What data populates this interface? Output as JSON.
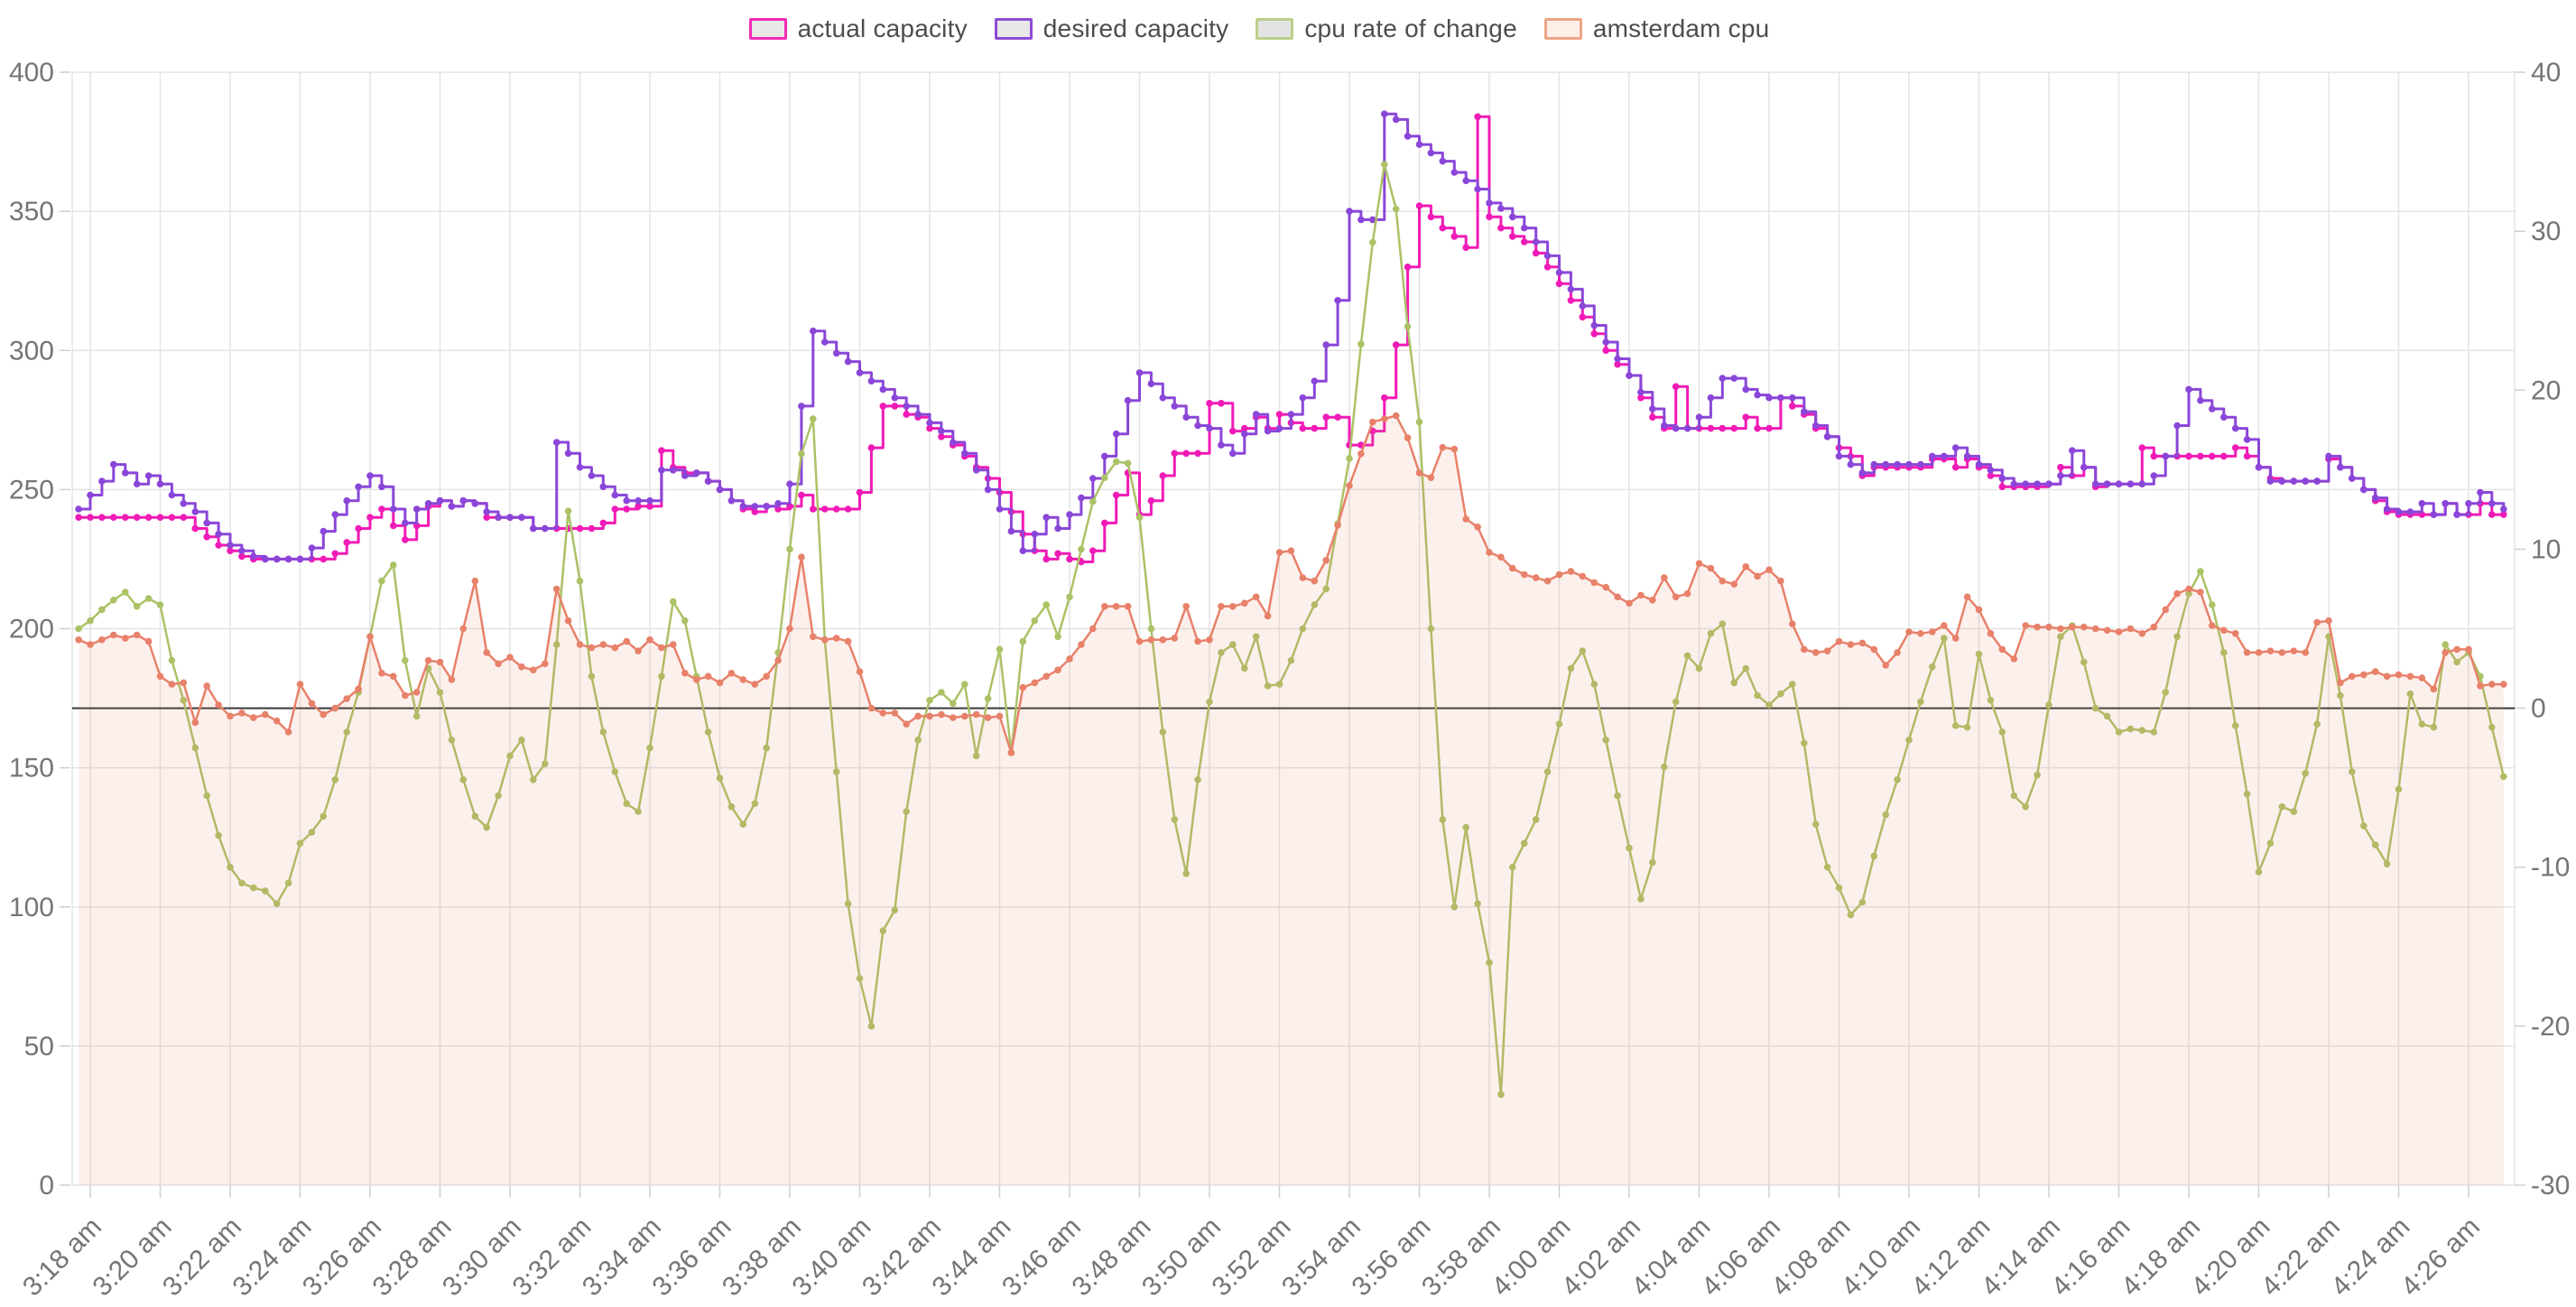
{
  "chart_data": {
    "type": "line",
    "title": "",
    "x_axis": {
      "start_time": "3:17:40 am",
      "step_seconds": 20,
      "point_count": 209,
      "tick_interval_minutes": 2,
      "tick_labels": [
        "3:18 am",
        "3:20 am",
        "3:22 am",
        "3:24 am",
        "3:26 am",
        "3:28 am",
        "3:30 am",
        "3:32 am",
        "3:34 am",
        "3:36 am",
        "3:38 am",
        "3:40 am",
        "3:42 am",
        "3:44 am",
        "3:46 am",
        "3:48 am",
        "3:50 am",
        "3:52 am",
        "3:54 am",
        "3:56 am",
        "3:58 am",
        "4:00 am",
        "4:02 am",
        "4:04 am",
        "4:06 am",
        "4:08 am",
        "4:10 am",
        "4:12 am",
        "4:14 am",
        "4:16 am",
        "4:18 am",
        "4:20 am",
        "4:22 am",
        "4:24 am",
        "4:26 am"
      ]
    },
    "y_axis_left": {
      "min": 0,
      "max": 400,
      "tick_step": 50,
      "ticks": [
        0,
        50,
        100,
        150,
        200,
        250,
        300,
        350,
        400
      ]
    },
    "y_axis_right": {
      "min": -30,
      "max": 40,
      "tick_step": 10,
      "ticks": [
        -30,
        -20,
        -10,
        0,
        10,
        20,
        30,
        40
      ]
    },
    "zero_line": {
      "axis": "right",
      "value": 0,
      "color": "#373737"
    },
    "grid_color": "#e4e4e4",
    "tick_text_color": "#757575",
    "series": [
      {
        "name": "actual capacity",
        "axis": "left",
        "shape": "step",
        "color": "#f01bb6",
        "values": [
          240,
          240,
          240,
          240,
          240,
          240,
          240,
          240,
          240,
          240,
          236,
          233,
          230,
          228,
          226,
          225,
          225,
          225,
          225,
          225,
          225,
          225,
          227,
          231,
          236,
          240,
          243,
          237,
          232,
          237,
          244,
          246,
          244,
          246,
          245,
          240,
          240,
          240,
          240,
          236,
          236,
          236,
          236,
          236,
          236,
          238,
          243,
          243,
          244,
          244,
          264,
          258,
          256,
          256,
          253,
          250,
          246,
          243,
          242,
          244,
          243,
          244,
          248,
          243,
          243,
          243,
          243,
          249,
          265,
          280,
          280,
          277,
          276,
          272,
          269,
          266,
          262,
          258,
          254,
          249,
          242,
          234,
          228,
          225,
          227,
          225,
          224,
          228,
          238,
          248,
          256,
          241,
          246,
          255,
          263,
          263,
          263,
          281,
          281,
          271,
          272,
          276,
          272,
          277,
          274,
          272,
          272,
          276,
          276,
          266,
          266,
          271,
          283,
          302,
          330,
          352,
          348,
          344,
          341,
          337,
          384,
          348,
          344,
          341,
          339,
          335,
          330,
          324,
          318,
          312,
          306,
          300,
          295,
          291,
          283,
          276,
          272,
          287,
          272,
          272,
          272,
          272,
          272,
          276,
          272,
          272,
          283,
          280,
          277,
          272,
          269,
          265,
          262,
          255,
          258,
          258,
          258,
          258,
          258,
          261,
          261,
          258,
          261,
          258,
          255,
          251,
          251,
          251,
          251,
          252,
          258,
          255,
          258,
          251,
          252,
          252,
          252,
          265,
          262,
          262,
          262,
          262,
          262,
          262,
          262,
          265,
          262,
          258,
          254,
          253,
          253,
          253,
          253,
          261,
          258,
          254,
          250,
          246,
          242,
          241,
          241,
          241,
          241,
          245,
          241,
          241,
          245,
          241,
          241
        ]
      },
      {
        "name": "desired capacity",
        "axis": "left",
        "shape": "step",
        "color": "#8a46d8",
        "values": [
          243,
          248,
          253,
          259,
          256,
          252,
          255,
          252,
          248,
          245,
          242,
          238,
          234,
          230,
          228,
          226,
          225,
          225,
          225,
          225,
          229,
          235,
          241,
          246,
          251,
          255,
          251,
          243,
          238,
          243,
          245,
          246,
          244,
          246,
          245,
          242,
          240,
          240,
          240,
          236,
          236,
          267,
          263,
          258,
          255,
          251,
          248,
          246,
          246,
          246,
          257,
          257,
          255,
          256,
          253,
          250,
          246,
          244,
          244,
          244,
          245,
          252,
          280,
          307,
          303,
          299,
          296,
          292,
          289,
          286,
          283,
          280,
          277,
          274,
          271,
          267,
          263,
          257,
          250,
          243,
          235,
          228,
          234,
          240,
          236,
          241,
          247,
          254,
          262,
          270,
          282,
          292,
          288,
          283,
          280,
          276,
          273,
          272,
          266,
          263,
          270,
          277,
          271,
          272,
          277,
          283,
          289,
          302,
          318,
          350,
          347,
          347,
          385,
          383,
          377,
          374,
          371,
          368,
          364,
          361,
          358,
          353,
          351,
          348,
          344,
          339,
          334,
          328,
          322,
          316,
          309,
          303,
          297,
          291,
          285,
          279,
          273,
          272,
          272,
          276,
          283,
          290,
          290,
          286,
          284,
          283,
          283,
          283,
          278,
          273,
          269,
          262,
          259,
          256,
          259,
          259,
          259,
          259,
          259,
          262,
          262,
          265,
          262,
          259,
          257,
          254,
          252,
          252,
          252,
          252,
          255,
          264,
          258,
          252,
          252,
          252,
          252,
          252,
          255,
          262,
          273,
          286,
          282,
          279,
          276,
          272,
          268,
          258,
          253,
          253,
          253,
          253,
          253,
          262,
          258,
          254,
          250,
          247,
          243,
          242,
          242,
          245,
          241,
          245,
          241,
          245,
          249,
          245,
          243
        ]
      },
      {
        "name": "cpu rate of change",
        "axis": "right",
        "shape": "linear",
        "color": "#abc266",
        "values": [
          5.0,
          5.5,
          6.2,
          6.8,
          7.3,
          6.4,
          6.9,
          6.5,
          3.0,
          0.5,
          -2.5,
          -5.5,
          -8.0,
          -10.0,
          -11.0,
          -11.3,
          -11.5,
          -12.3,
          -11.0,
          -8.5,
          -7.8,
          -6.8,
          -4.5,
          -1.5,
          1.0,
          4.5,
          8.0,
          9.0,
          3.0,
          -0.5,
          2.5,
          1.0,
          -2.0,
          -4.5,
          -6.8,
          -7.5,
          -5.5,
          -3.0,
          -2.0,
          -4.5,
          -3.5,
          4.0,
          12.4,
          8.0,
          2.0,
          -1.5,
          -4.0,
          -6.0,
          -6.5,
          -2.5,
          2.0,
          6.7,
          5.5,
          2.0,
          -1.5,
          -4.4,
          -6.2,
          -7.3,
          -6.0,
          -2.5,
          3.5,
          10.0,
          16.0,
          18.2,
          4.3,
          -4.0,
          -12.3,
          -17.0,
          -20.0,
          -14.0,
          -12.7,
          -6.5,
          -2.0,
          0.5,
          1.0,
          0.3,
          1.5,
          -3.0,
          0.6,
          3.7,
          -2.8,
          4.2,
          5.5,
          6.5,
          4.5,
          7.0,
          10.0,
          13.0,
          14.5,
          15.5,
          15.4,
          12.0,
          5.0,
          -1.5,
          -7.0,
          -10.4,
          -4.5,
          0.4,
          3.5,
          4.0,
          2.5,
          4.5,
          1.4,
          1.5,
          3.0,
          5.0,
          6.5,
          7.5,
          11.6,
          15.7,
          22.9,
          29.3,
          34.2,
          31.4,
          24.0,
          18.0,
          5.0,
          -7.0,
          -12.5,
          -7.5,
          -12.3,
          -16.0,
          -24.3,
          -10.0,
          -8.5,
          -7.0,
          -4.0,
          -1.0,
          2.5,
          3.6,
          1.5,
          -2.0,
          -5.5,
          -8.8,
          -12.0,
          -9.7,
          -3.7,
          0.4,
          3.3,
          2.5,
          4.7,
          5.3,
          1.6,
          2.5,
          0.8,
          0.2,
          0.9,
          1.5,
          -2.2,
          -7.3,
          -10.0,
          -11.3,
          -13.0,
          -12.2,
          -9.3,
          -6.7,
          -4.5,
          -2.0,
          0.4,
          2.6,
          4.4,
          -1.1,
          -1.2,
          3.4,
          0.5,
          -1.5,
          -5.5,
          -6.2,
          -4.2,
          0.2,
          4.5,
          5.2,
          2.9,
          0.0,
          -0.5,
          -1.5,
          -1.3,
          -1.4,
          -1.5,
          1.0,
          4.5,
          7.2,
          8.6,
          6.5,
          3.5,
          -1.1,
          -5.4,
          -10.3,
          -8.5,
          -6.2,
          -6.5,
          -4.1,
          -1.0,
          4.5,
          0.8,
          -4.0,
          -7.4,
          -8.6,
          -9.8,
          -5.1,
          0.9,
          -1.0,
          -1.2,
          4.0,
          2.9,
          3.5,
          2.0,
          -1.2,
          -4.3
        ]
      },
      {
        "name": "amsterdam cpu",
        "axis": "right",
        "shape": "linear",
        "area": true,
        "color": "#e8816a",
        "fill_color": "rgba(232,129,106,0.12)",
        "values": [
          4.3,
          4.0,
          4.3,
          4.6,
          4.4,
          4.6,
          4.2,
          2.0,
          1.5,
          1.6,
          -0.9,
          1.4,
          0.2,
          -0.5,
          -0.3,
          -0.6,
          -0.4,
          -0.8,
          -1.5,
          1.5,
          0.3,
          -0.4,
          0.0,
          0.6,
          1.2,
          4.5,
          2.2,
          2.0,
          0.8,
          1.0,
          3.0,
          2.9,
          1.8,
          5.0,
          8.0,
          3.5,
          2.8,
          3.2,
          2.6,
          2.4,
          2.8,
          7.5,
          5.5,
          4.0,
          3.8,
          4.0,
          3.8,
          4.2,
          3.6,
          4.3,
          3.8,
          4.0,
          2.2,
          1.8,
          2.0,
          1.6,
          2.2,
          1.8,
          1.5,
          2.0,
          3.0,
          5.0,
          9.5,
          4.5,
          4.3,
          4.4,
          4.2,
          2.3,
          0.0,
          -0.3,
          -0.3,
          -1.0,
          -0.5,
          -0.5,
          -0.4,
          -0.6,
          -0.5,
          -0.4,
          -0.6,
          -0.5,
          -2.8,
          1.3,
          1.6,
          2.0,
          2.4,
          3.1,
          4.0,
          5.0,
          6.4,
          6.4,
          6.4,
          4.2,
          4.3,
          4.3,
          4.4,
          6.4,
          4.2,
          4.3,
          6.4,
          6.4,
          6.6,
          7.0,
          5.8,
          9.8,
          9.9,
          8.2,
          8.0,
          9.3,
          11.5,
          14.0,
          16.0,
          18.0,
          18.2,
          18.4,
          17.0,
          14.8,
          14.5,
          16.4,
          16.3,
          11.9,
          11.4,
          9.8,
          9.5,
          8.8,
          8.4,
          8.2,
          8.0,
          8.4,
          8.6,
          8.3,
          7.9,
          7.6,
          7.0,
          6.6,
          7.1,
          6.8,
          8.2,
          7.0,
          7.2,
          9.1,
          8.8,
          8.0,
          7.8,
          8.9,
          8.3,
          8.7,
          8.0,
          5.3,
          3.7,
          3.5,
          3.6,
          4.2,
          4.0,
          4.1,
          3.7,
          2.7,
          3.5,
          4.8,
          4.7,
          4.8,
          5.2,
          4.4,
          7.0,
          6.2,
          4.7,
          3.7,
          3.1,
          5.2,
          5.1,
          5.1,
          5.0,
          5.1,
          5.1,
          5.0,
          4.9,
          4.8,
          5.0,
          4.7,
          5.1,
          6.2,
          7.2,
          7.5,
          7.3,
          5.2,
          4.9,
          4.7,
          3.5,
          3.5,
          3.6,
          3.5,
          3.6,
          3.5,
          5.4,
          5.5,
          1.6,
          2.0,
          2.1,
          2.3,
          2.0,
          2.1,
          2.0,
          1.9,
          1.2,
          3.5,
          3.7,
          3.7,
          1.4,
          1.5,
          1.5
        ]
      }
    ],
    "legend": {
      "position": "top-center",
      "items": [
        {
          "label": "actual capacity",
          "border_color": "#f32ab8",
          "swatch_fill": "#e8e8e8"
        },
        {
          "label": "desired capacity",
          "border_color": "#8d4bd4",
          "swatch_fill": "#e8e8e8"
        },
        {
          "label": "cpu rate of change",
          "border_color": "#bccf8b",
          "swatch_fill": "#e3e3e3"
        },
        {
          "label": "amsterdam cpu",
          "border_color": "#eda484",
          "swatch_fill": "#fdeee8"
        }
      ]
    }
  }
}
